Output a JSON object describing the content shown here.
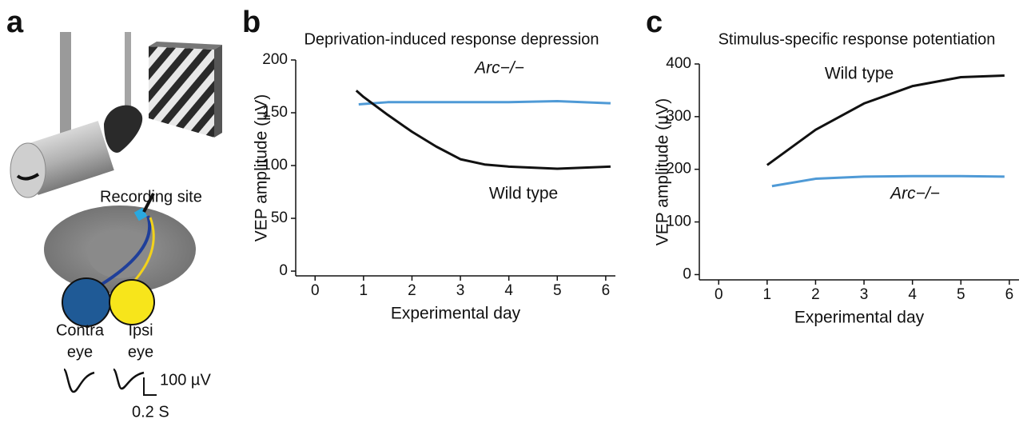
{
  "illustration": {
    "panel_label": "a",
    "recording_site": "Recording site",
    "contra": "Contra",
    "contra_eye": "eye",
    "ipsi": "Ipsi",
    "ipsi_eye": "eye",
    "scale_amplitude": "100 µV",
    "scale_time": "0.2 S"
  },
  "chart_data": [
    {
      "type": "line",
      "panel_label": "b",
      "title": "Deprivation-induced response depression",
      "x_label": "Experimental day",
      "y_label": "VEP amplitude (µV)",
      "xlim": [
        -0.4,
        6.2
      ],
      "xticks": [
        0,
        1,
        2,
        3,
        4,
        5,
        6
      ],
      "ylim": [
        -4.5,
        200
      ],
      "yticks": [
        0,
        50,
        100,
        150,
        200
      ],
      "grid": false,
      "series": [
        {
          "name": "Arc−/−",
          "color": "#4f9ad6",
          "x": [
            0.9,
            1.5,
            2,
            3,
            4,
            5,
            6.1
          ],
          "values": [
            158,
            160,
            160,
            160,
            160,
            161,
            159
          ]
        },
        {
          "name": "Wild type",
          "color": "#111111",
          "x": [
            0.85,
            1,
            1.5,
            2,
            2.5,
            3,
            3.5,
            4,
            5,
            6.1
          ],
          "values": [
            171,
            165,
            148,
            132,
            118,
            106,
            101,
            99,
            97,
            99
          ]
        }
      ]
    },
    {
      "type": "line",
      "panel_label": "c",
      "title": "Stimulus-specific response potentiation",
      "x_label": "Experimental day",
      "y_label": "VEP amplitude (µV)",
      "xlim": [
        -0.4,
        6.2
      ],
      "xticks": [
        0,
        1,
        2,
        3,
        4,
        5,
        6
      ],
      "ylim": [
        -10,
        400
      ],
      "yticks": [
        0,
        100,
        200,
        300,
        400
      ],
      "grid": false,
      "series": [
        {
          "name": "Wild type",
          "color": "#111111",
          "x": [
            1,
            2,
            3,
            4,
            5,
            5.9
          ],
          "values": [
            208,
            275,
            325,
            358,
            375,
            378
          ]
        },
        {
          "name": "Arc−/−",
          "color": "#4f9ad6",
          "x": [
            1.1,
            2,
            3,
            4,
            5,
            5.9
          ],
          "values": [
            168,
            182,
            186,
            187,
            187,
            186
          ]
        }
      ]
    }
  ]
}
